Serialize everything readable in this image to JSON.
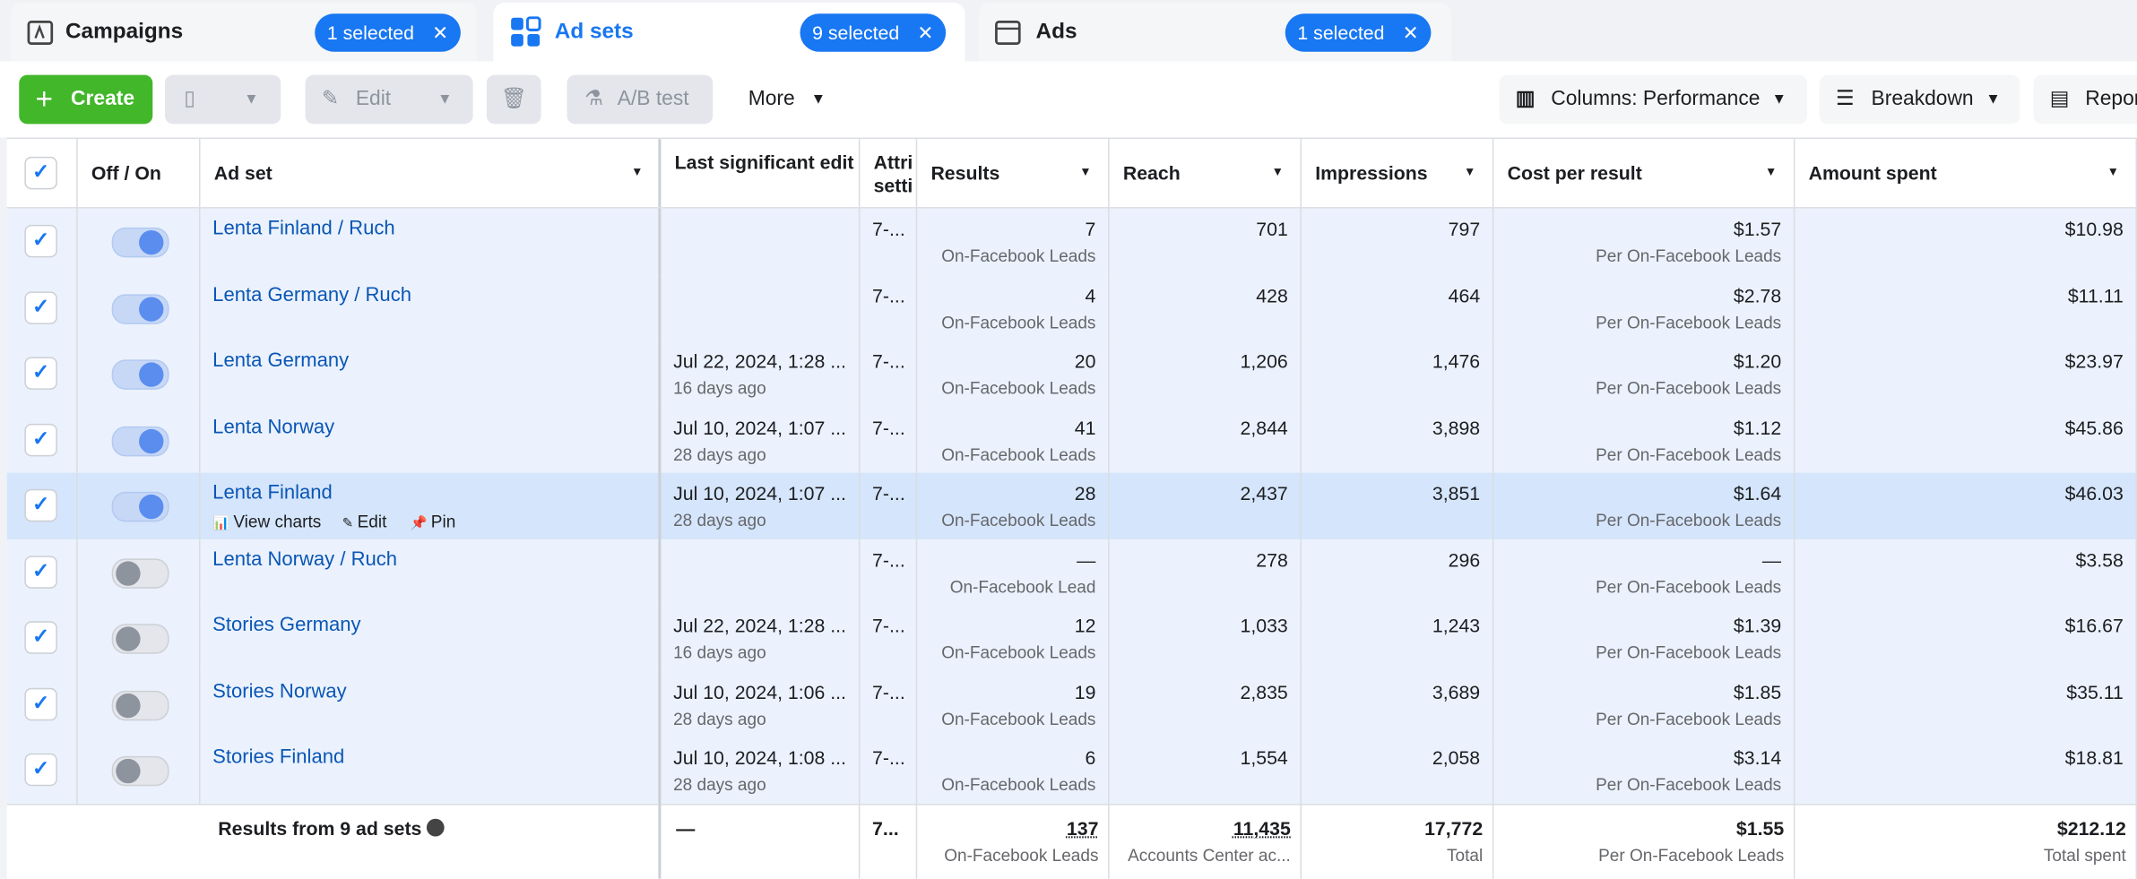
{
  "tabs": [
    {
      "label": "Campaigns",
      "badge": "1 selected"
    },
    {
      "label": "Ad sets",
      "badge": "9 selected"
    },
    {
      "label": "Ads",
      "badge": "1 selected"
    }
  ],
  "toolbar": {
    "create": "Create",
    "edit": "Edit",
    "ab_test": "A/B test",
    "more": "More",
    "columns": "Columns: Performance",
    "breakdown": "Breakdown",
    "reports": "Reports"
  },
  "table": {
    "headers": [
      "Off / On",
      "Ad set",
      "Last significant edit",
      "Attribution setting",
      "Results",
      "Reach",
      "Impressions",
      "Cost per result",
      "Amount spent"
    ],
    "rows": [
      {
        "name": "Lenta Finland / Ruch",
        "on": true,
        "last_edit": "",
        "last_edit_ago": "",
        "attribution": "7-...",
        "results": "7",
        "results_label": "On-Facebook Leads",
        "reach": "701",
        "impressions": "797",
        "cost": "$1.57",
        "cost_label": "Per On-Facebook Leads",
        "amount": "$10.98"
      },
      {
        "name": "Lenta Germany / Ruch",
        "on": true,
        "last_edit": "",
        "last_edit_ago": "",
        "attribution": "7-...",
        "results": "4",
        "results_label": "On-Facebook Leads",
        "reach": "428",
        "impressions": "464",
        "cost": "$2.78",
        "cost_label": "Per On-Facebook Leads",
        "amount": "$11.11"
      },
      {
        "name": "Lenta Germany",
        "on": true,
        "last_edit": "Jul 22, 2024, 1:28 ...",
        "last_edit_ago": "16 days ago",
        "attribution": "7-...",
        "results": "20",
        "results_label": "On-Facebook Leads",
        "reach": "1,206",
        "impressions": "1,476",
        "cost": "$1.20",
        "cost_label": "Per On-Facebook Leads",
        "amount": "$23.97"
      },
      {
        "name": "Lenta Norway",
        "on": true,
        "last_edit": "Jul 10, 2024, 1:07 ...",
        "last_edit_ago": "28 days ago",
        "attribution": "7-...",
        "results": "41",
        "results_label": "On-Facebook Leads",
        "reach": "2,844",
        "impressions": "3,898",
        "cost": "$1.12",
        "cost_label": "Per On-Facebook Leads",
        "amount": "$45.86"
      },
      {
        "name": "Lenta Finland",
        "on": true,
        "last_edit": "Jul 10, 2024, 1:07 ...",
        "last_edit_ago": "28 days ago",
        "attribution": "7-...",
        "results": "28",
        "results_label": "On-Facebook Leads",
        "reach": "2,437",
        "impressions": "3,851",
        "cost": "$1.64",
        "cost_label": "Per On-Facebook Leads",
        "amount": "$46.03",
        "actions": [
          "View charts",
          "Edit",
          "Pin"
        ]
      },
      {
        "name": "Lenta Norway / Ruch",
        "on": false,
        "last_edit": "",
        "last_edit_ago": "",
        "attribution": "7-...",
        "results": "—",
        "results_label": "On-Facebook Lead",
        "reach": "278",
        "impressions": "296",
        "cost": "—",
        "cost_label": "Per On-Facebook Leads",
        "amount": "$3.58"
      },
      {
        "name": "Stories Germany",
        "on": false,
        "last_edit": "Jul 22, 2024, 1:28 ...",
        "last_edit_ago": "16 days ago",
        "attribution": "7-...",
        "results": "12",
        "results_label": "On-Facebook Leads",
        "reach": "1,033",
        "impressions": "1,243",
        "cost": "$1.39",
        "cost_label": "Per On-Facebook Leads",
        "amount": "$16.67"
      },
      {
        "name": "Stories Norway",
        "on": false,
        "last_edit": "Jul 10, 2024, 1:06 ...",
        "last_edit_ago": "28 days ago",
        "attribution": "7-...",
        "results": "19",
        "results_label": "On-Facebook Leads",
        "reach": "2,835",
        "impressions": "3,689",
        "cost": "$1.85",
        "cost_label": "Per On-Facebook Leads",
        "amount": "$35.11"
      },
      {
        "name": "Stories Finland",
        "on": false,
        "last_edit": "Jul 10, 2024, 1:08 ...",
        "last_edit_ago": "28 days ago",
        "attribution": "7-...",
        "results": "6",
        "results_label": "On-Facebook Leads",
        "reach": "1,554",
        "impressions": "2,058",
        "cost": "$3.14",
        "cost_label": "Per On-Facebook Leads",
        "amount": "$18.81"
      }
    ],
    "footer": {
      "label": "Results from 9 ad sets",
      "last_edit": "—",
      "attribution": "7...",
      "results": "137",
      "results_label": "On-Facebook Leads",
      "reach": "11,435",
      "reach_label": "Accounts Center ac...",
      "impressions": "17,772",
      "impressions_label": "Total",
      "cost": "$1.55",
      "cost_label": "Per On-Facebook Leads",
      "amount": "$212.12",
      "amount_label": "Total spent"
    }
  }
}
